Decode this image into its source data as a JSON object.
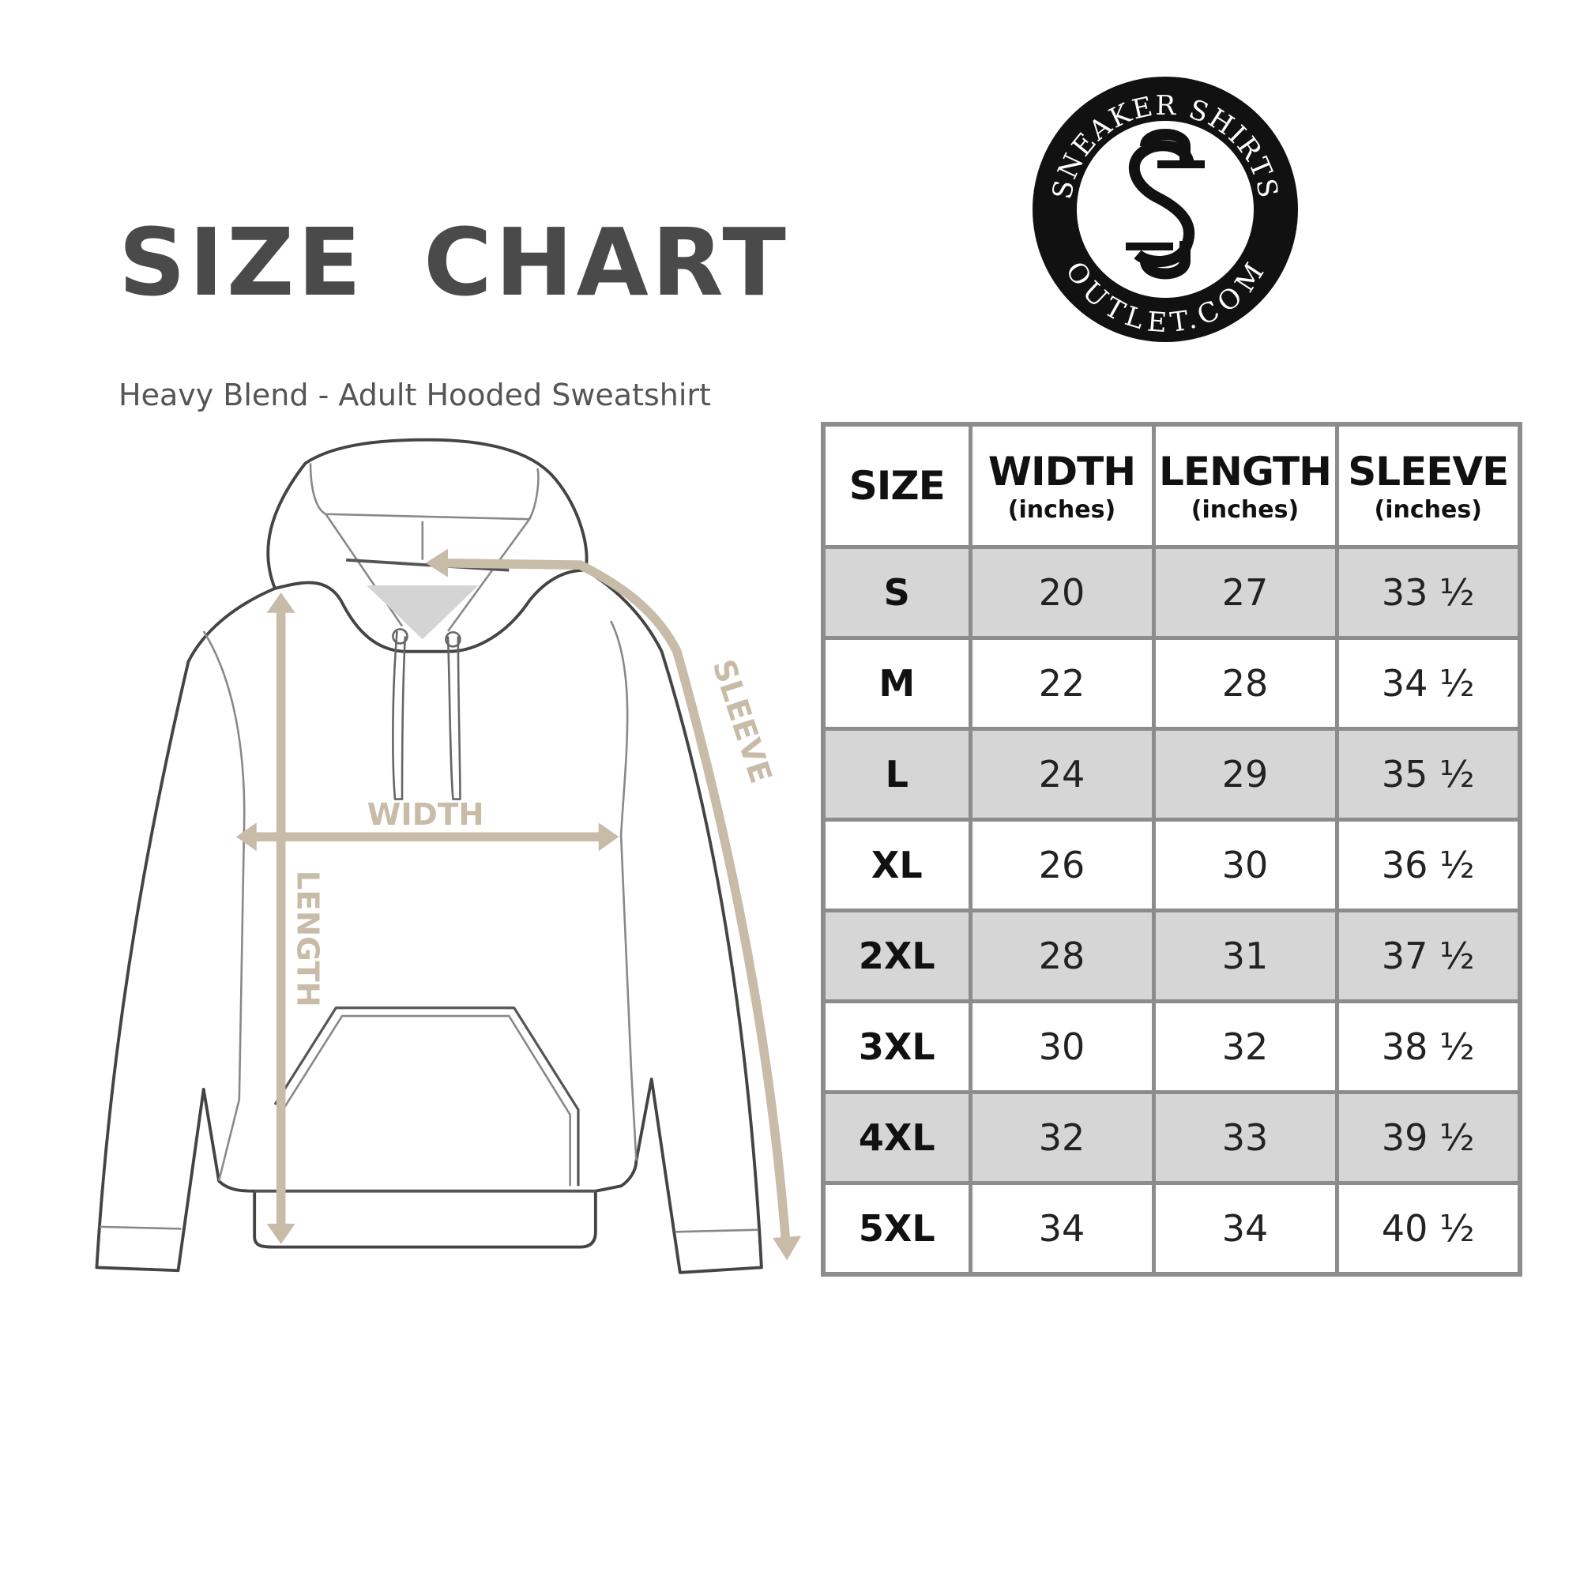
{
  "title": "SIZE CHART",
  "subtitle": "Heavy Blend - Adult Hooded Sweatshirt",
  "logo": {
    "top_text": "SNEAKER SHIRTS",
    "bottom_text": "OUTLET.COM",
    "monogram": "SS"
  },
  "diagram": {
    "width_label": "WIDTH",
    "length_label": "LENGTH",
    "sleeve_label": "SLEEVE",
    "arrow_color": "#c8bca9"
  },
  "table": {
    "headers": [
      {
        "label": "SIZE",
        "unit": ""
      },
      {
        "label": "WIDTH",
        "unit": "(inches)"
      },
      {
        "label": "LENGTH",
        "unit": "(inches)"
      },
      {
        "label": "SLEEVE",
        "unit": "(inches)"
      }
    ],
    "rows": [
      [
        "S",
        "20",
        "27",
        "33 ½"
      ],
      [
        "M",
        "22",
        "28",
        "34 ½"
      ],
      [
        "L",
        "24",
        "29",
        "35 ½"
      ],
      [
        "XL",
        "26",
        "30",
        "36 ½"
      ],
      [
        "2XL",
        "28",
        "31",
        "37 ½"
      ],
      [
        "3XL",
        "30",
        "32",
        "38 ½"
      ],
      [
        "4XL",
        "32",
        "33",
        "39 ½"
      ],
      [
        "5XL",
        "34",
        "34",
        "40 ½"
      ]
    ],
    "shade_color": "#d6d6d6",
    "border_color": "#8c8c8c"
  }
}
